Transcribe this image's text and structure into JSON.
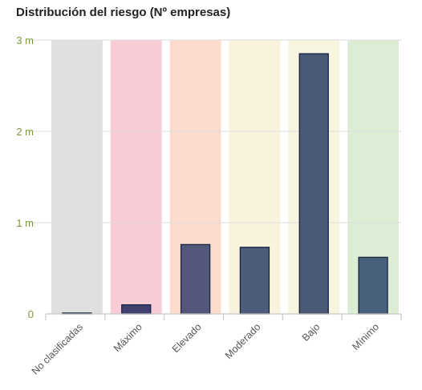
{
  "chart_data": {
    "type": "bar",
    "title": "Distribución del riesgo (Nº empresas)",
    "xlabel": "",
    "ylabel": "",
    "categories": [
      "No clasificadas",
      "Máximo",
      "Elevado",
      "Moderado",
      "Bajo",
      "Mínimo"
    ],
    "values": [
      10000,
      100000,
      760000,
      730000,
      2850000,
      620000
    ],
    "ylim": [
      0,
      3000000
    ],
    "yticks": [
      {
        "value": 0,
        "label": "0"
      },
      {
        "value": 1000000,
        "label": "1 m"
      },
      {
        "value": 2000000,
        "label": "2 m"
      },
      {
        "value": 3000000,
        "label": "3 m"
      }
    ],
    "grid": true,
    "legend": "none",
    "colors": {
      "category_backgrounds": [
        "#e0e0e0",
        "#f7ccd5",
        "#fddccd",
        "#f9f2dc",
        "#f7f5e0",
        "#dcedd6"
      ],
      "bars": [
        "#3f4a6e",
        "#3f4270",
        "#54577c",
        "#4d5c7a",
        "#4b5a74",
        "#47607c"
      ],
      "bar_outline": "#1a2540",
      "y_tick_text": "#7a9a3a",
      "x_tick_text": "#555555",
      "grid": "#dddddd",
      "axis": "#c8c8c8"
    }
  }
}
